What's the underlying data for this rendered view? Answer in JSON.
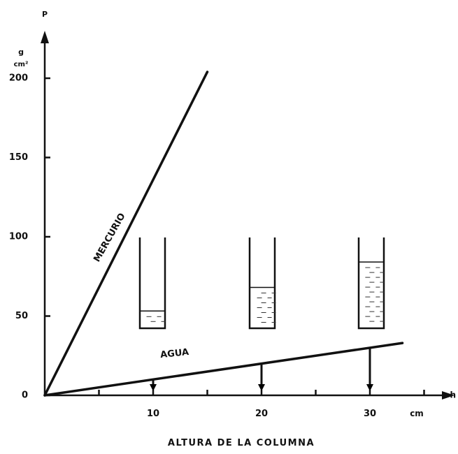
{
  "chart_data": {
    "type": "line",
    "y_axis_symbol": "P",
    "y_unit_top": "g",
    "y_unit_bottom": "cm²",
    "x_axis_symbol": "h",
    "x_unit": "cm",
    "x_axis_title": "ALTURA DE LA COLUMNA",
    "x_ticks": [
      "10",
      "20",
      "30"
    ],
    "y_ticks": [
      "0",
      "50",
      "100",
      "150",
      "200"
    ],
    "xlim": [
      0,
      38
    ],
    "ylim": [
      0,
      205
    ],
    "series": [
      {
        "name": "MERCURIO",
        "x": [
          0,
          15
        ],
        "y": [
          0,
          204
        ]
      },
      {
        "name": "AGUA",
        "x": [
          0,
          33
        ],
        "y": [
          0,
          33
        ]
      }
    ],
    "agua_markers": [
      {
        "x": 10,
        "y": 10
      },
      {
        "x": 20,
        "y": 20
      },
      {
        "x": 30,
        "y": 30
      }
    ],
    "tubes": [
      {
        "fill_fraction": 0.19
      },
      {
        "fill_fraction": 0.45
      },
      {
        "fill_fraction": 0.73
      }
    ]
  }
}
